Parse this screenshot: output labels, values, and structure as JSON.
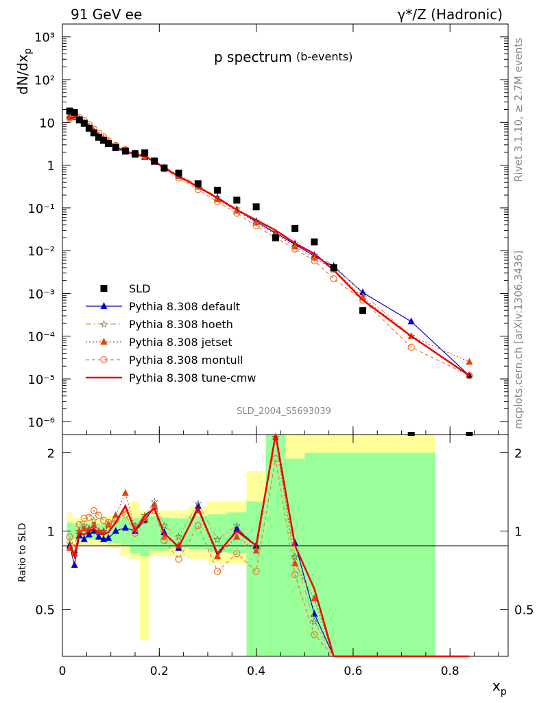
{
  "header": {
    "left_title": "91 GeV ee",
    "right_title": "γ*/Z (Hadronic)"
  },
  "side_labels": {
    "rivet": "Rivet 3.1.10, ≥ 2.7M events",
    "mcplots": "mcplots.cern.ch [arXiv:1306.3436]"
  },
  "chart_data": {
    "type": "line",
    "title": "p spectrum",
    "subtitle": "(b-events)",
    "analysis_tag": "SLD_2004_S5693039",
    "xlabel": "x_p",
    "ylabel": "dN/dx_p",
    "ratio_ylabel": "Ratio to SLD",
    "xlim": [
      0,
      0.92
    ],
    "ylim_log": [
      5e-07,
      2000
    ],
    "ratio_ylim": [
      0.33,
      2.35
    ],
    "x_ticks": [
      "0",
      "0.2",
      "0.4",
      "0.6",
      "0.8"
    ],
    "y_ticks": [
      "10⁻⁶",
      "10⁻⁵",
      "10⁻⁴",
      "10⁻³",
      "10⁻²",
      "10⁻¹",
      "1",
      "10",
      "10²",
      "10³"
    ],
    "ratio_ticks": [
      "0.5",
      "1",
      "2"
    ],
    "legend": [
      "SLD",
      "Pythia 8.308 default",
      "Pythia 8.308 hoeth",
      "Pythia 8.308 jetset",
      "Pythia 8.308 montull",
      "Pythia 8.308 tune-cmw"
    ],
    "x": [
      0.015,
      0.025,
      0.035,
      0.045,
      0.055,
      0.065,
      0.075,
      0.085,
      0.095,
      0.11,
      0.13,
      0.15,
      0.17,
      0.19,
      0.21,
      0.24,
      0.28,
      0.32,
      0.36,
      0.4,
      0.44,
      0.48,
      0.52,
      0.56,
      0.62,
      0.72,
      0.84
    ],
    "sld": [
      18.5,
      17.0,
      11.5,
      9.5,
      7.3,
      5.7,
      4.5,
      3.8,
      3.2,
      2.6,
      2.15,
      1.85,
      1.95,
      1.25,
      0.86,
      0.65,
      0.37,
      0.26,
      0.152,
      0.106,
      0.02,
      0.033,
      0.016,
      0.004,
      0.0004,
      5e-07,
      5e-07
    ],
    "series": [
      {
        "name": "Pythia 8.308 default",
        "color": "#0000cc",
        "values": [
          14,
          13.2,
          11.3,
          9.3,
          7.4,
          6.0,
          4.6,
          3.7,
          3.1,
          2.5,
          2.05,
          1.74,
          1.55,
          1.18,
          0.86,
          0.55,
          0.32,
          0.17,
          0.09,
          0.048,
          0.026,
          0.014,
          0.0075,
          0.0042,
          0.00105,
          0.00022,
          1.2e-05
        ],
        "ratio": [
          0.88,
          0.74,
          0.96,
          0.93,
          0.97,
          1.0,
          0.95,
          0.93,
          0.94,
          1.0,
          1.03,
          1.0,
          1.1,
          1.24,
          0.99,
          0.86,
          1.25,
          0.8,
          1.02,
          0.88,
          2.4,
          0.9,
          0.48,
          0.3,
          0.3,
          0.3,
          0.3
        ]
      },
      {
        "name": "Pythia 8.308 hoeth",
        "color": "#dd9955",
        "values": [
          12.5,
          13.8,
          12.2,
          10.1,
          8.0,
          6.4,
          5.0,
          4.1,
          3.4,
          2.8,
          2.25,
          1.9,
          1.7,
          1.3,
          0.92,
          0.6,
          0.34,
          0.18,
          0.095,
          0.05,
          0.027,
          0.015,
          0.008,
          0.0045,
          0.001,
          0.0001,
          1.2e-05
        ],
        "ratio": [
          0.9,
          0.82,
          1.0,
          1.05,
          1.0,
          1.1,
          1.0,
          1.0,
          1.05,
          1.12,
          1.2,
          1.05,
          1.15,
          1.3,
          1.05,
          0.95,
          1.28,
          0.93,
          1.05,
          0.85,
          2.3,
          0.8,
          0.45,
          0.3,
          0.3,
          0.3,
          0.3
        ]
      },
      {
        "name": "Pythia 8.308 jetset",
        "color": "#dd4411",
        "values": [
          13,
          14,
          12,
          10,
          8.0,
          6.5,
          5.0,
          4.2,
          3.5,
          2.8,
          2.2,
          1.85,
          1.65,
          1.25,
          0.88,
          0.56,
          0.31,
          0.16,
          0.085,
          0.045,
          0.024,
          0.0125,
          0.0068,
          0.0036,
          0.0008,
          0.0001,
          2.5e-05
        ],
        "ratio": [
          0.86,
          0.82,
          1.0,
          1.02,
          1.02,
          1.05,
          1.0,
          1.0,
          1.06,
          1.15,
          1.4,
          1.02,
          1.12,
          1.26,
          0.95,
          0.88,
          1.2,
          0.8,
          0.95,
          0.84,
          2.3,
          0.75,
          0.55,
          0.3,
          0.3,
          0.3,
          0.3
        ]
      },
      {
        "name": "Pythia 8.308 montull",
        "color": "#ee7733",
        "values": [
          12.8,
          14.2,
          13.0,
          11.0,
          8.8,
          7.0,
          5.6,
          4.6,
          3.7,
          2.9,
          2.3,
          1.9,
          1.65,
          1.22,
          0.82,
          0.5,
          0.27,
          0.14,
          0.075,
          0.038,
          0.02,
          0.011,
          0.0058,
          0.0022,
          0.0007,
          5.5e-05,
          1.2e-05
        ],
        "ratio": [
          0.95,
          0.86,
          1.06,
          1.12,
          1.13,
          1.2,
          1.15,
          1.1,
          1.08,
          1.1,
          1.16,
          0.98,
          1.1,
          1.2,
          0.92,
          0.78,
          1.05,
          0.7,
          0.82,
          0.7,
          1.9,
          0.68,
          0.4,
          0.3,
          0.3,
          0.3,
          0.3
        ]
      },
      {
        "name": "Pythia 8.308 tune-cmw",
        "color": "#ee0000",
        "values": [
          12.2,
          13.4,
          12.0,
          9.9,
          7.8,
          6.2,
          4.8,
          3.9,
          3.3,
          2.7,
          2.1,
          1.78,
          1.6,
          1.22,
          0.86,
          0.55,
          0.31,
          0.17,
          0.09,
          0.052,
          0.03,
          0.015,
          0.0085,
          0.0035,
          0.0007,
          0.0001,
          1.2e-05
        ],
        "ratio": [
          0.9,
          0.8,
          0.98,
          0.97,
          1.0,
          1.02,
          0.98,
          0.97,
          0.99,
          1.08,
          1.25,
          1.0,
          1.15,
          1.22,
          0.98,
          0.87,
          1.22,
          0.82,
          1.0,
          0.88,
          2.42,
          0.88,
          0.6,
          0.3,
          0.3,
          0.3,
          0.3
        ]
      }
    ],
    "uncertainty_bands": [
      {
        "x0": 0.01,
        "x1": 0.02,
        "g": [
          0.92,
          1.08
        ],
        "y": [
          0.88,
          1.18
        ]
      },
      {
        "x0": 0.02,
        "x1": 0.09,
        "g": [
          0.93,
          1.07
        ],
        "y": [
          0.88,
          1.12
        ]
      },
      {
        "x0": 0.09,
        "x1": 0.12,
        "g": [
          0.9,
          1.1
        ],
        "y": [
          0.86,
          1.14
        ]
      },
      {
        "x0": 0.12,
        "x1": 0.14,
        "g": [
          0.88,
          1.12
        ],
        "y": [
          0.8,
          1.2
        ]
      },
      {
        "x0": 0.14,
        "x1": 0.16,
        "g": [
          0.82,
          1.12
        ],
        "y": [
          0.78,
          1.3
        ]
      },
      {
        "x0": 0.16,
        "x1": 0.18,
        "g": [
          0.8,
          1.14
        ],
        "y": [
          0.38,
          1.2
        ]
      },
      {
        "x0": 0.18,
        "x1": 0.2,
        "g": [
          0.84,
          1.14
        ],
        "y": [
          0.8,
          1.18
        ]
      },
      {
        "x0": 0.2,
        "x1": 0.22,
        "g": [
          0.84,
          1.13
        ],
        "y": [
          0.8,
          1.2
        ]
      },
      {
        "x0": 0.22,
        "x1": 0.26,
        "g": [
          0.86,
          1.12
        ],
        "y": [
          0.8,
          1.2
        ]
      },
      {
        "x0": 0.26,
        "x1": 0.3,
        "g": [
          0.85,
          1.14
        ],
        "y": [
          0.78,
          1.24
        ]
      },
      {
        "x0": 0.3,
        "x1": 0.34,
        "g": [
          0.83,
          1.16
        ],
        "y": [
          0.75,
          1.3
        ]
      },
      {
        "x0": 0.34,
        "x1": 0.38,
        "g": [
          0.82,
          1.18
        ],
        "y": [
          0.75,
          1.3
        ]
      },
      {
        "x0": 0.38,
        "x1": 0.42,
        "g": [
          0.33,
          1.3
        ],
        "y": [
          0.33,
          1.7
        ]
      },
      {
        "x0": 0.42,
        "x1": 0.46,
        "g": [
          0.33,
          2.35
        ],
        "y": [
          0.33,
          2.35
        ]
      },
      {
        "x0": 0.46,
        "x1": 0.5,
        "g": [
          0.33,
          1.9
        ],
        "y": [
          0.33,
          2.35
        ]
      },
      {
        "x0": 0.5,
        "x1": 0.58,
        "g": [
          0.33,
          2.0
        ],
        "y": [
          0.33,
          2.35
        ]
      },
      {
        "x0": 0.58,
        "x1": 0.77,
        "g": [
          0.33,
          2.0
        ],
        "y": [
          0.33,
          2.35
        ]
      }
    ]
  }
}
